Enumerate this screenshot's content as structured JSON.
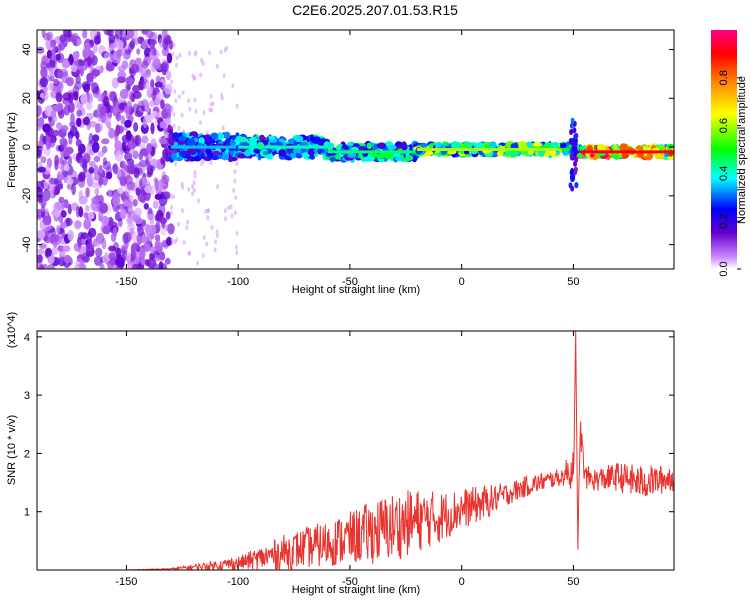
{
  "title": "C2E6.2025.207.01.53.R15",
  "chart_data": [
    {
      "type": "heatmap",
      "xlabel": "Height of straight line (km)",
      "ylabel": "Frequency (Hz)",
      "xlim": [
        -190,
        95
      ],
      "ylim": [
        -50,
        48
      ],
      "x_ticks": [
        -150,
        -100,
        -50,
        0,
        50
      ],
      "y_ticks": [
        40,
        20,
        0,
        -20,
        -40
      ],
      "colorbar": {
        "label": "Normalized spectral amplitude",
        "range": [
          0,
          1
        ],
        "ticks": [
          "0.0",
          "0.2",
          "0.4",
          "0.6",
          "0.8"
        ],
        "colors": [
          "#ffffff",
          "#cc88ff",
          "#6600cc",
          "#0000ff",
          "#00ffff",
          "#00ff00",
          "#ffff00",
          "#ff8800",
          "#ff0000",
          "#ff0088"
        ]
      },
      "noise_region_x": [
        -190,
        -130
      ],
      "band_segments": [
        {
          "x_start": -130,
          "x_end": -100,
          "freq": 0,
          "half_width": 5,
          "amp": 0.35
        },
        {
          "x_start": -100,
          "x_end": -60,
          "freq": 0,
          "half_width": 4,
          "amp": 0.42
        },
        {
          "x_start": -60,
          "x_end": -20,
          "freq": -2,
          "half_width": 3,
          "amp": 0.45
        },
        {
          "x_start": -20,
          "x_end": 45,
          "freq": -1,
          "half_width": 2,
          "amp": 0.6
        },
        {
          "x_start": 45,
          "x_end": 53,
          "freq": -1,
          "half_width": 2,
          "amp": 0.5
        },
        {
          "x_start": 53,
          "x_end": 95,
          "freq": -2,
          "half_width": 2,
          "amp": 0.9
        }
      ],
      "spike": {
        "x": 50,
        "freq_range": [
          -18,
          12
        ]
      }
    },
    {
      "type": "line",
      "xlabel": "Height of straight line (km)",
      "ylabel": "SNR (10 * v/v)",
      "y_multiplier": "(x10^4)",
      "xlim": [
        -190,
        95
      ],
      "ylim": [
        0,
        4.1
      ],
      "x_ticks": [
        -150,
        -100,
        -50,
        0,
        50
      ],
      "y_ticks": [
        1,
        2,
        3,
        4
      ],
      "series": [
        {
          "color": "#e8332e",
          "x": [
            -190,
            -180,
            -170,
            -160,
            -150,
            -140,
            -130,
            -120,
            -110,
            -100,
            -90,
            -80,
            -70,
            -60,
            -50,
            -40,
            -30,
            -20,
            -10,
            0,
            10,
            20,
            30,
            40,
            45,
            48,
            50,
            51,
            52,
            53,
            55,
            60,
            70,
            80,
            90,
            95
          ],
          "values": [
            0.0,
            0.0,
            0.0,
            0.0,
            0.0,
            0.01,
            0.02,
            0.05,
            0.08,
            0.12,
            0.2,
            0.3,
            0.38,
            0.45,
            0.55,
            0.65,
            0.75,
            0.85,
            0.9,
            1.05,
            1.15,
            1.3,
            1.45,
            1.55,
            1.6,
            1.7,
            1.75,
            4.1,
            0.35,
            2.5,
            1.6,
            1.55,
            1.6,
            1.5,
            1.55,
            1.6
          ],
          "noise": [
            0,
            0,
            0,
            0,
            0,
            0.005,
            0.01,
            0.05,
            0.08,
            0.12,
            0.2,
            0.3,
            0.35,
            0.4,
            0.45,
            0.55,
            0.6,
            0.55,
            0.45,
            0.35,
            0.3,
            0.2,
            0.18,
            0.15,
            0.15,
            0.3,
            0.6,
            0.0,
            0.0,
            0.3,
            0.2,
            0.2,
            0.25,
            0.3,
            0.25,
            0.25
          ]
        }
      ]
    }
  ]
}
